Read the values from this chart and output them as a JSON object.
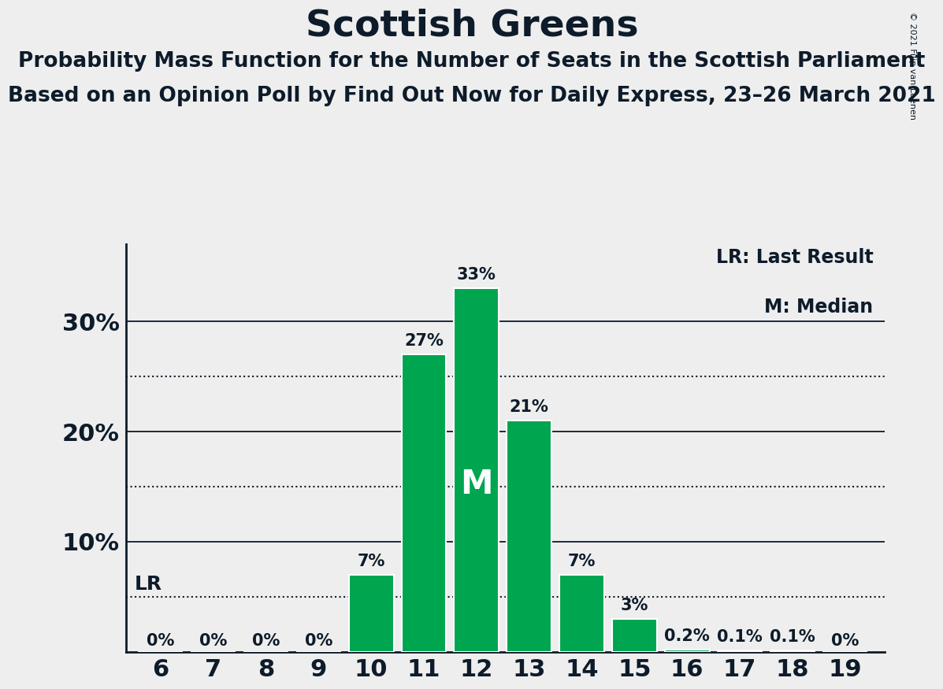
{
  "title": "Scottish Greens",
  "subtitle1": "Probability Mass Function for the Number of Seats in the Scottish Parliament",
  "subtitle2": "Based on an Opinion Poll by Find Out Now for Daily Express, 23–26 March 2021",
  "copyright": "© 2021 Filip van Laenen",
  "seats": [
    6,
    7,
    8,
    9,
    10,
    11,
    12,
    13,
    14,
    15,
    16,
    17,
    18,
    19
  ],
  "probabilities": [
    0.0,
    0.0,
    0.0,
    0.0,
    0.07,
    0.27,
    0.33,
    0.21,
    0.07,
    0.03,
    0.002,
    0.001,
    0.001,
    0.0
  ],
  "bar_labels": [
    "0%",
    "0%",
    "0%",
    "0%",
    "7%",
    "27%",
    "33%",
    "21%",
    "7%",
    "3%",
    "0.2%",
    "0.1%",
    "0.1%",
    "0%"
  ],
  "bar_color": "#00A550",
  "bar_edge_color": "#ffffff",
  "median_seat": 12,
  "median_label": "M",
  "lr_value": 0.05,
  "lr_label": "LR",
  "yticks": [
    0.0,
    0.1,
    0.2,
    0.3
  ],
  "ytick_labels": [
    "",
    "10%",
    "20%",
    "30%"
  ],
  "dotted_lines": [
    0.15,
    0.25
  ],
  "background_color": "#eeeeee",
  "title_fontsize": 34,
  "subtitle_fontsize": 19,
  "bar_label_fontsize": 15,
  "axis_tick_fontsize": 22,
  "legend_fontsize": 17,
  "ylim": [
    0,
    0.37
  ]
}
